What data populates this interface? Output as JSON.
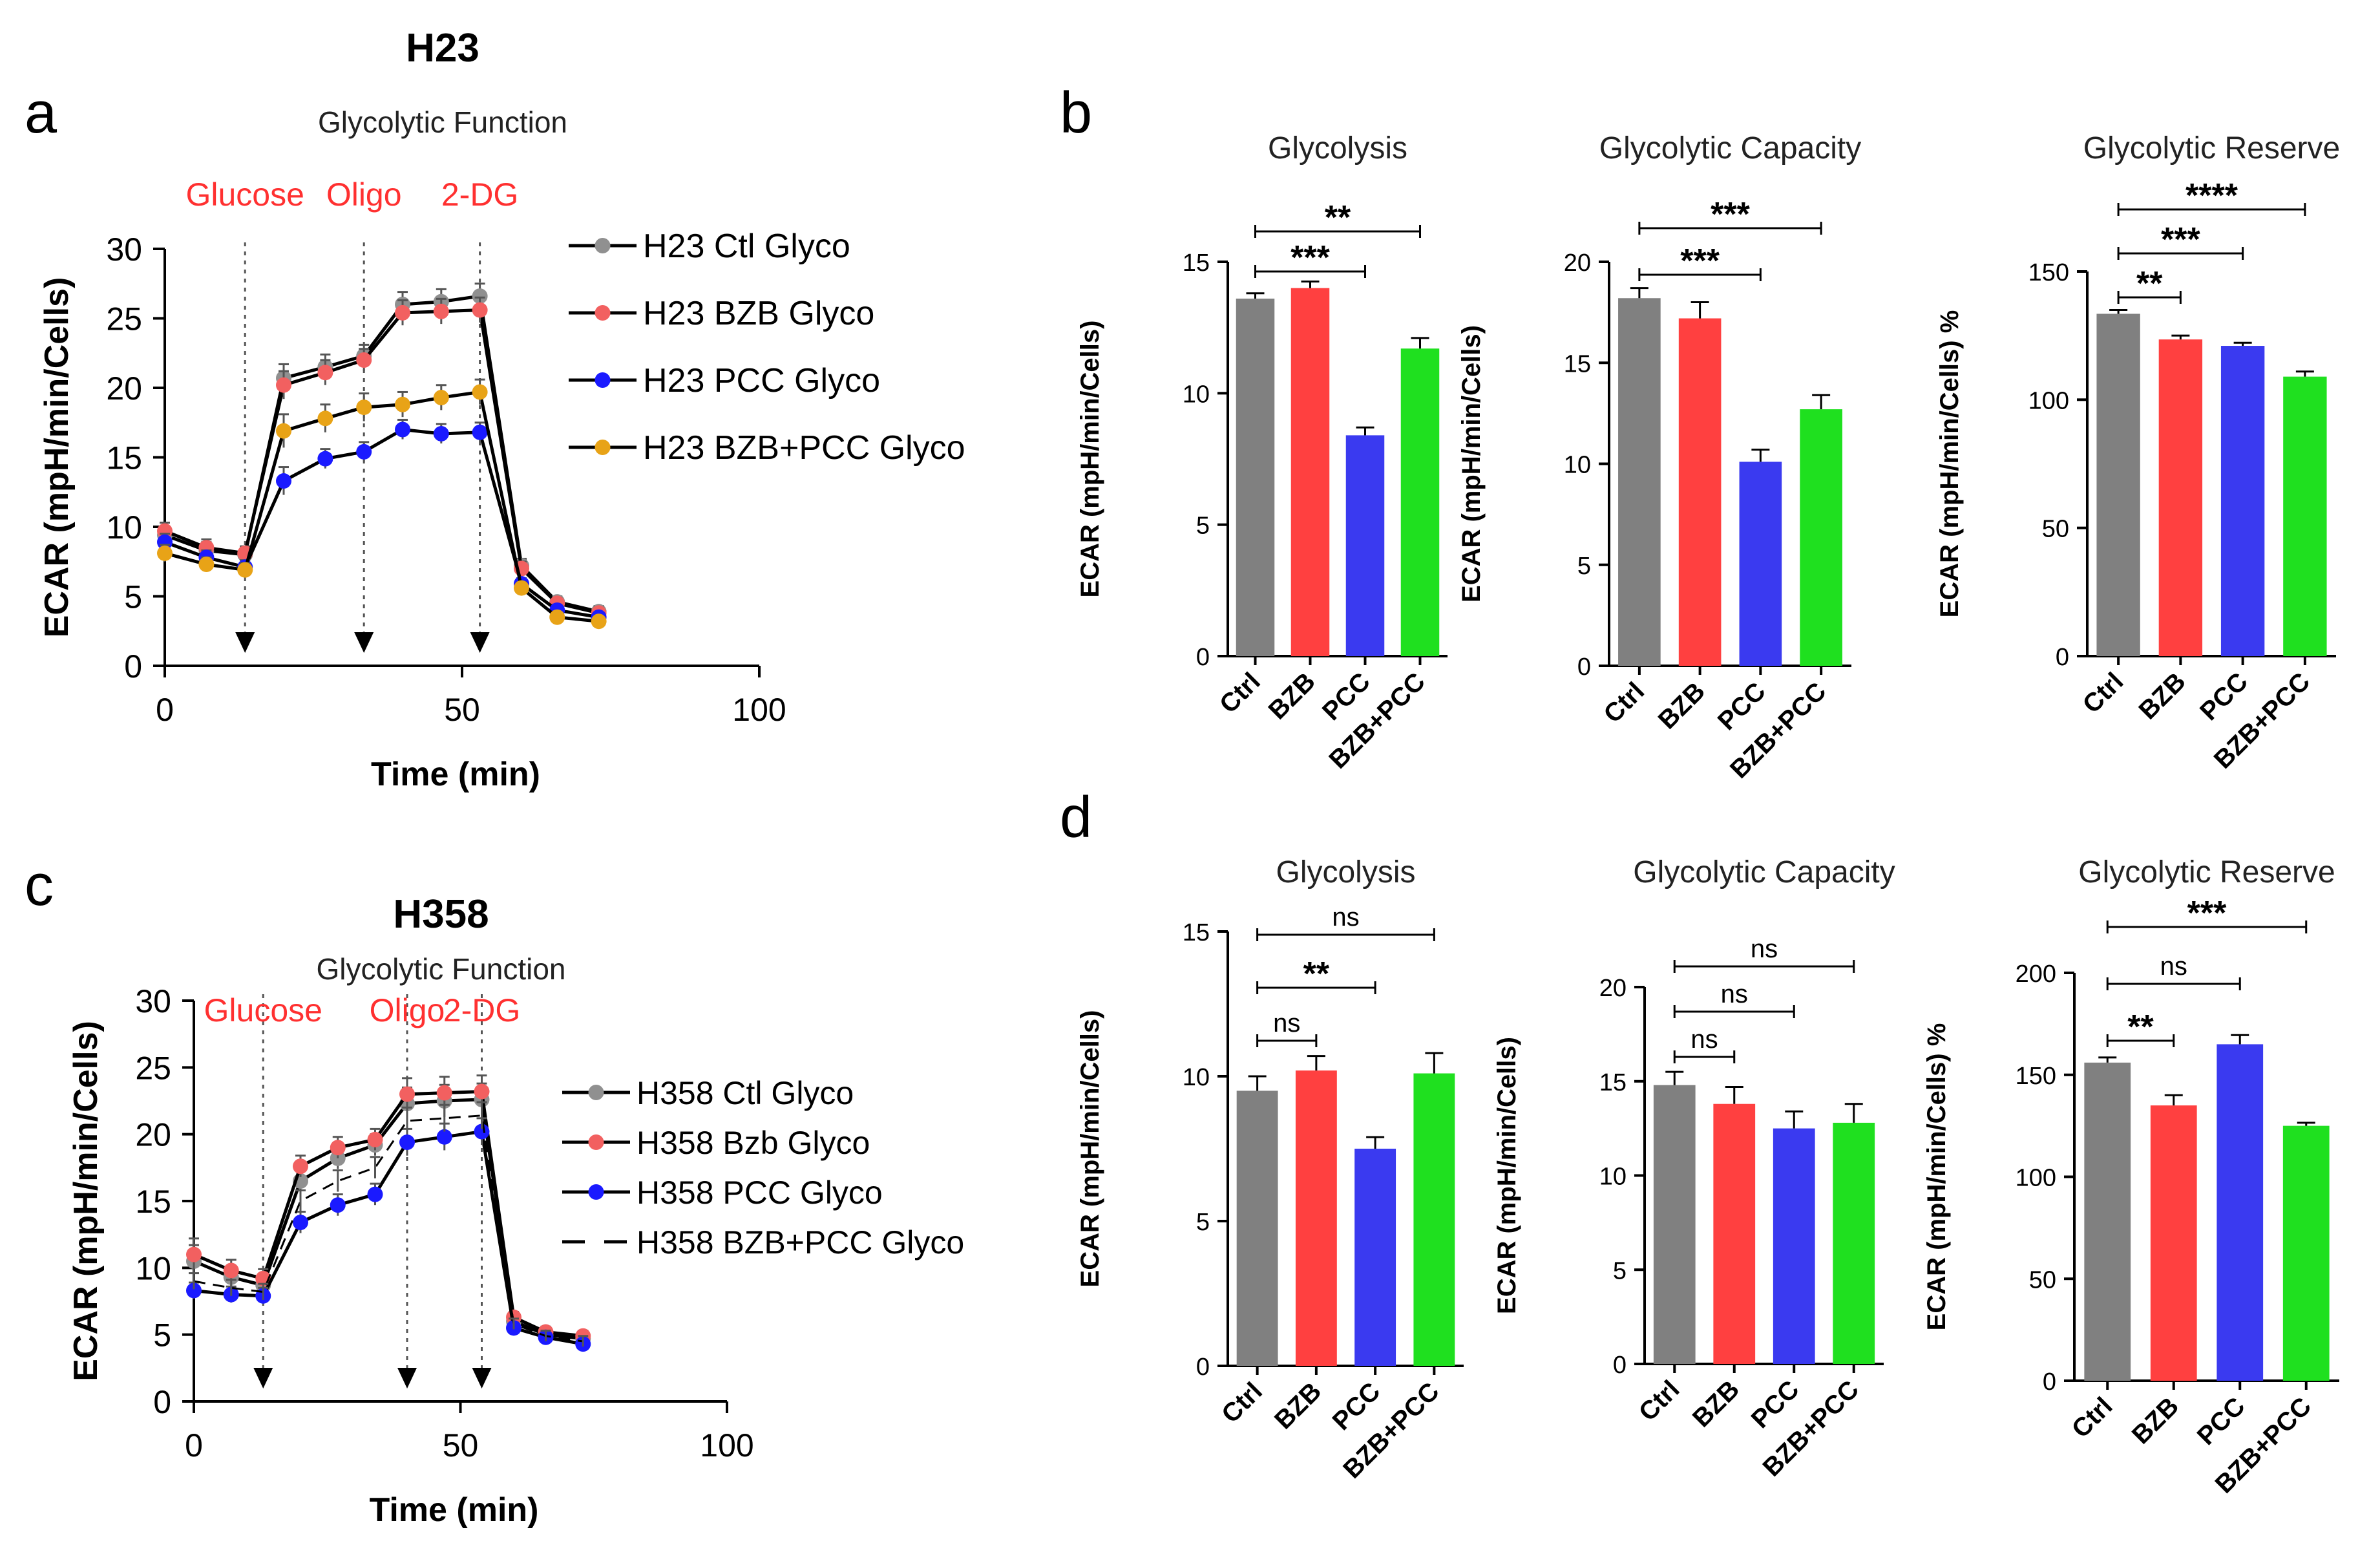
{
  "colors": {
    "ctrl": "#808080",
    "bzb": "#ff4040",
    "pcc": "#3a3af0",
    "combo": "#1fe01f",
    "label_red": "#ff3030",
    "ctl_line": "#909090",
    "bzb_line": "#f26060",
    "pcc_line": "#1a1aff",
    "combo_line": "#e8a317"
  },
  "chart_data": [
    {
      "id": "a",
      "panel_letter": "a",
      "type": "line",
      "title": "H23",
      "subtitle": "Glycolytic Function",
      "xlabel": "Time (min)",
      "ylabel": "ECAR (mpH/min/Cells)",
      "xlim": [
        0,
        100
      ],
      "ylim": [
        0,
        30
      ],
      "xticks": [
        0,
        50,
        100
      ],
      "yticks": [
        0,
        5,
        10,
        15,
        20,
        25,
        30
      ],
      "injections": [
        {
          "label": "Glucose",
          "x": 13.5
        },
        {
          "label": "Oligo",
          "x": 33.5
        },
        {
          "label": "2-DG",
          "x": 53
        }
      ],
      "x": [
        0,
        7,
        13.5,
        20,
        27,
        33.5,
        40,
        46.5,
        53,
        60,
        66,
        73
      ],
      "series": [
        {
          "name": "H23 Ctl Glyco",
          "color_key": "ctl_line",
          "style": "marker",
          "values": [
            9.4,
            8.3,
            8.0,
            20.7,
            21.5,
            22.3,
            26.0,
            26.2,
            26.6,
            7.2,
            4.6,
            3.9
          ],
          "err": [
            0.6,
            0.6,
            0.5,
            1.0,
            0.9,
            0.8,
            0.9,
            0.9,
            0.9,
            0.5,
            0.4,
            0.4
          ]
        },
        {
          "name": "H23 BZB Glyco",
          "color_key": "bzb_line",
          "style": "marker",
          "values": [
            9.7,
            8.5,
            8.1,
            20.2,
            21.1,
            22.0,
            25.4,
            25.5,
            25.6,
            7.0,
            4.5,
            3.8
          ],
          "err": [
            0.6,
            0.6,
            0.5,
            1.0,
            0.9,
            0.8,
            0.9,
            0.9,
            0.9,
            0.5,
            0.4,
            0.4
          ]
        },
        {
          "name": "H23 PCC Glyco",
          "color_key": "pcc_line",
          "style": "marker",
          "values": [
            8.9,
            7.8,
            7.1,
            13.3,
            14.9,
            15.4,
            17.0,
            16.7,
            16.8,
            5.9,
            4.0,
            3.5
          ],
          "err": [
            0.6,
            0.5,
            0.5,
            1.0,
            0.7,
            0.7,
            0.7,
            0.7,
            0.7,
            0.4,
            0.4,
            0.3
          ]
        },
        {
          "name": "H23 BZB+PCC Glyco",
          "color_key": "combo_line",
          "style": "marker",
          "values": [
            8.1,
            7.3,
            6.9,
            16.9,
            17.8,
            18.6,
            18.8,
            19.3,
            19.7,
            5.6,
            3.5,
            3.2
          ],
          "err": [
            0.6,
            0.5,
            0.5,
            1.2,
            1.0,
            1.0,
            0.9,
            0.9,
            0.9,
            0.4,
            0.3,
            0.3
          ]
        }
      ]
    },
    {
      "id": "c",
      "panel_letter": "c",
      "type": "line",
      "title": "H358",
      "subtitle": "Glycolytic Function",
      "xlabel": "Time (min)",
      "ylabel": "ECAR (mpH/min/Cells)",
      "xlim": [
        0,
        100
      ],
      "ylim": [
        0,
        30
      ],
      "xticks": [
        0,
        50,
        100
      ],
      "yticks": [
        0,
        5,
        10,
        15,
        20,
        25,
        30
      ],
      "injections": [
        {
          "label": "Glucose",
          "x": 13
        },
        {
          "label": "Oligo",
          "x": 40
        },
        {
          "label": "2-DG",
          "x": 54
        }
      ],
      "x": [
        0,
        7,
        13,
        20,
        27,
        34,
        40,
        47,
        54,
        60,
        66,
        73
      ],
      "series": [
        {
          "name": "H358 Ctl Glyco",
          "color_key": "ctl_line",
          "style": "marker",
          "values": [
            10.5,
            9.3,
            8.7,
            16.5,
            18.2,
            19.2,
            22.3,
            22.5,
            22.6,
            6.0,
            5.0,
            4.7
          ],
          "err": [
            1.2,
            0.8,
            0.7,
            0.8,
            0.8,
            0.8,
            1.2,
            1.2,
            1.2,
            0.4,
            0.4,
            0.4
          ]
        },
        {
          "name": "H358 Bzb Glyco",
          "color_key": "bzb_line",
          "style": "marker",
          "values": [
            11.0,
            9.8,
            9.2,
            17.6,
            19.0,
            19.6,
            23.0,
            23.1,
            23.2,
            6.3,
            5.2,
            4.9
          ],
          "err": [
            1.2,
            0.8,
            0.7,
            0.8,
            0.8,
            0.8,
            1.2,
            1.2,
            1.2,
            0.4,
            0.4,
            0.4
          ]
        },
        {
          "name": "H358 PCC Glyco",
          "color_key": "pcc_line",
          "style": "marker",
          "values": [
            8.3,
            8.0,
            7.9,
            13.4,
            14.7,
            15.5,
            19.4,
            19.8,
            20.2,
            5.5,
            4.8,
            4.3
          ],
          "err": [
            0.6,
            0.6,
            0.6,
            0.8,
            0.8,
            0.8,
            1.0,
            1.0,
            1.0,
            0.4,
            0.4,
            0.4
          ]
        },
        {
          "name": "H358 BZB+PCC Glyco",
          "color_key": "ctl_line",
          "style": "dash",
          "values": [
            9.0,
            8.5,
            8.2,
            15.0,
            16.5,
            17.5,
            21.0,
            21.2,
            21.4,
            5.8,
            4.9,
            4.5
          ],
          "err": [
            0.6,
            0.6,
            0.6,
            0.8,
            0.8,
            0.8,
            1.0,
            1.0,
            1.0,
            0.4,
            0.4,
            0.4
          ]
        }
      ]
    },
    {
      "id": "b1",
      "panel_letter": "b",
      "type": "bar",
      "title": "Glycolysis",
      "ylabel": "ECAR (mpH/min/Cells)",
      "categories": [
        "Ctrl",
        "BZB",
        "PCC",
        "BZB+PCC"
      ],
      "values": [
        13.6,
        14.0,
        8.4,
        11.7
      ],
      "errors": [
        0.2,
        0.25,
        0.3,
        0.4
      ],
      "ylim": [
        0,
        15
      ],
      "yticks": [
        0,
        5,
        10,
        15
      ],
      "significance": [
        {
          "from": 0,
          "to": 2,
          "label": "***",
          "level": 0
        },
        {
          "from": 0,
          "to": 3,
          "label": "**",
          "level": 1
        }
      ]
    },
    {
      "id": "b2",
      "panel_letter": "",
      "type": "bar",
      "title": "Glycolytic Capacity",
      "ylabel": "ECAR (mpH/min/Cells)",
      "categories": [
        "Ctrl",
        "BZB",
        "PCC",
        "BZB+PCC"
      ],
      "values": [
        18.2,
        17.2,
        10.1,
        12.7
      ],
      "errors": [
        0.5,
        0.8,
        0.6,
        0.7
      ],
      "ylim": [
        0,
        20
      ],
      "yticks": [
        0,
        5,
        10,
        15,
        20
      ],
      "significance": [
        {
          "from": 0,
          "to": 2,
          "label": "***",
          "level": 0
        },
        {
          "from": 0,
          "to": 3,
          "label": "***",
          "level": 1
        }
      ]
    },
    {
      "id": "b3",
      "panel_letter": "",
      "type": "bar",
      "title": "Glycolytic Reserve",
      "ylabel": "ECAR (mpH/min/Cells) %",
      "categories": [
        "Ctrl",
        "BZB",
        "PCC",
        "BZB+PCC"
      ],
      "values": [
        133.5,
        123.5,
        121.0,
        109.0
      ],
      "errors": [
        1.5,
        1.5,
        1.2,
        2.0
      ],
      "ylim": [
        0,
        150
      ],
      "yticks": [
        0,
        50,
        100,
        150
      ],
      "significance": [
        {
          "from": 0,
          "to": 1,
          "label": "**",
          "level": 0
        },
        {
          "from": 0,
          "to": 2,
          "label": "***",
          "level": 1
        },
        {
          "from": 0,
          "to": 3,
          "label": "****",
          "level": 2
        }
      ]
    },
    {
      "id": "d1",
      "panel_letter": "d",
      "type": "bar",
      "title": "Glycolysis",
      "ylabel": "ECAR (mpH/min/Cells)",
      "categories": [
        "Ctrl",
        "BZB",
        "PCC",
        "BZB+PCC"
      ],
      "values": [
        9.5,
        10.2,
        7.5,
        10.1
      ],
      "errors": [
        0.5,
        0.5,
        0.4,
        0.7
      ],
      "ylim": [
        0,
        15
      ],
      "yticks": [
        0,
        5,
        10,
        15
      ],
      "significance": [
        {
          "from": 0,
          "to": 1,
          "label": "ns",
          "level": 0
        },
        {
          "from": 0,
          "to": 2,
          "label": "**",
          "level": 1
        },
        {
          "from": 0,
          "to": 3,
          "label": "ns",
          "level": 2
        }
      ]
    },
    {
      "id": "d2",
      "panel_letter": "",
      "type": "bar",
      "title": "Glycolytic Capacity",
      "ylabel": "ECAR (mpH/min/Cells)",
      "categories": [
        "Ctrl",
        "BZB",
        "PCC",
        "BZB+PCC"
      ],
      "values": [
        14.8,
        13.8,
        12.5,
        12.8
      ],
      "errors": [
        0.7,
        0.9,
        0.9,
        1.0
      ],
      "ylim": [
        0,
        20
      ],
      "yticks": [
        0,
        5,
        10,
        15,
        20
      ],
      "significance": [
        {
          "from": 0,
          "to": 1,
          "label": "ns",
          "level": 0
        },
        {
          "from": 0,
          "to": 2,
          "label": "ns",
          "level": 1
        },
        {
          "from": 0,
          "to": 3,
          "label": "ns",
          "level": 2
        }
      ]
    },
    {
      "id": "d3",
      "panel_letter": "",
      "type": "bar",
      "title": "Glycolytic Reserve",
      "ylabel": "ECAR (mpH/min/Cells) %",
      "categories": [
        "Ctrl",
        "BZB",
        "PCC",
        "BZB+PCC"
      ],
      "values": [
        156.0,
        135.0,
        165.0,
        125.0
      ],
      "errors": [
        2.5,
        5.0,
        4.5,
        1.5
      ],
      "ylim": [
        0,
        200
      ],
      "yticks": [
        0,
        50,
        100,
        150,
        200
      ],
      "significance": [
        {
          "from": 0,
          "to": 1,
          "label": "**",
          "level": 0
        },
        {
          "from": 0,
          "to": 2,
          "label": "ns",
          "level": 1
        },
        {
          "from": 0,
          "to": 3,
          "label": "***",
          "level": 2
        }
      ]
    }
  ]
}
